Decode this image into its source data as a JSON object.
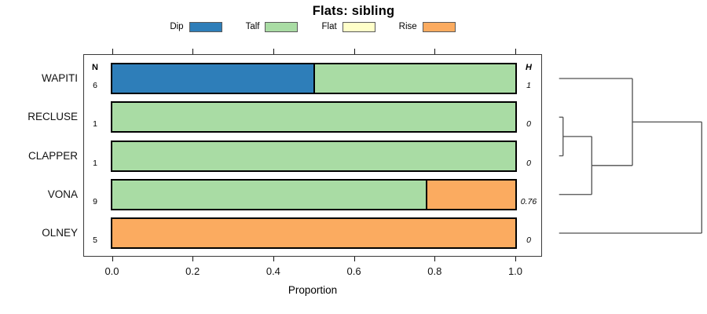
{
  "title": "Flats: sibling",
  "legend": [
    {
      "label": "Dip",
      "color": "#2E7EB9"
    },
    {
      "label": "Talf",
      "color": "#A9DCA4"
    },
    {
      "label": "Flat",
      "color": "#FFFFC9"
    },
    {
      "label": "Rise",
      "color": "#FBAB60"
    }
  ],
  "columns": {
    "n_header": "N",
    "h_header": "H"
  },
  "chart_data": {
    "type": "bar",
    "stacked": true,
    "orientation": "horizontal",
    "title": "Flats: sibling",
    "xlabel": "Proportion",
    "xlim": [
      0,
      1
    ],
    "x_ticks": [
      "0.0",
      "0.2",
      "0.4",
      "0.6",
      "0.8",
      "1.0"
    ],
    "x_tick_values": [
      0,
      0.2,
      0.4,
      0.6,
      0.8,
      1.0
    ],
    "categories": [
      "Dip",
      "Talf",
      "Flat",
      "Rise"
    ],
    "rows": [
      {
        "name": "WAPITI",
        "n": "6",
        "h": "1",
        "segments": [
          {
            "category": "Dip",
            "value": 0.5
          },
          {
            "category": "Talf",
            "value": 0.5
          }
        ]
      },
      {
        "name": "RECLUSE",
        "n": "1",
        "h": "0",
        "segments": [
          {
            "category": "Talf",
            "value": 1
          }
        ]
      },
      {
        "name": "CLAPPER",
        "n": "1",
        "h": "0",
        "segments": [
          {
            "category": "Talf",
            "value": 1
          }
        ]
      },
      {
        "name": "VONA",
        "n": "9",
        "h": "0.76",
        "segments": [
          {
            "category": "Talf",
            "value": 0.778
          },
          {
            "category": "Rise",
            "value": 0.222
          }
        ]
      },
      {
        "name": "OLNEY",
        "n": "5",
        "h": "0",
        "segments": [
          {
            "category": "Rise",
            "value": 1
          }
        ]
      }
    ],
    "dendrogram": {
      "note": "heights are fractions of dendrogram width, leaves on left",
      "merges": [
        {
          "a": "RECLUSE",
          "b": "CLAPPER",
          "height": 0.028
        },
        {
          "a": "@0",
          "b": "VONA",
          "height": 0.229
        },
        {
          "a": "@1",
          "b": "WAPITI",
          "height": 0.514
        },
        {
          "a": "@2",
          "b": "OLNEY",
          "height": 1.0
        }
      ]
    }
  }
}
